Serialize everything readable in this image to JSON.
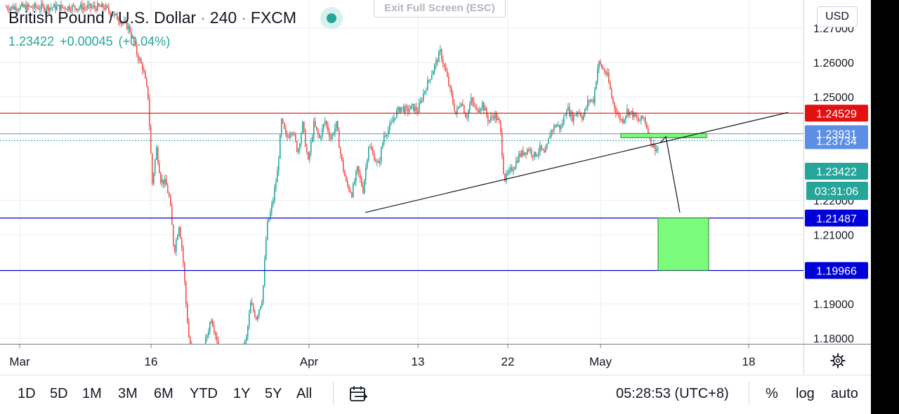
{
  "header": {
    "symbol": "British Pound / U.S. Dollar",
    "interval": "240",
    "exchange": "FXCM",
    "last_price": "1.23422",
    "change": "+0.00045",
    "change_pct": "(+0.04%)"
  },
  "exit_fullscreen_label": "Exit Full Screen (ESC)",
  "currency_button": "USD",
  "colors": {
    "up": "#26a69a",
    "down": "#ef5350",
    "resistance": "#e41010",
    "support": "#0000d8",
    "zone": "#7cfc7c",
    "badge_blue": "#5b8fe6",
    "badge_teal": "#26a69a"
  },
  "chart_data": {
    "type": "candlestick",
    "y_range": [
      1.177,
      1.275
    ],
    "y_ticks": [
      "1.27000",
      "1.26000",
      "1.25000",
      "1.22000",
      "1.21000",
      "1.19000",
      "1.18000"
    ],
    "x_ticks": [
      "Mar",
      "16",
      "Apr",
      "13",
      "22",
      "May",
      "18"
    ],
    "price_series": [
      [
        8,
        1.276
      ],
      [
        40,
        1.276
      ],
      [
        90,
        1.276
      ],
      [
        150,
        1.276
      ],
      [
        185,
        1.27
      ],
      [
        197,
        1.262
      ],
      [
        205,
        1.258
      ],
      [
        212,
        1.25
      ],
      [
        218,
        1.225
      ],
      [
        224,
        1.235
      ],
      [
        230,
        1.226
      ],
      [
        237,
        1.225
      ],
      [
        243,
        1.22
      ],
      [
        249,
        1.205
      ],
      [
        256,
        1.213
      ],
      [
        261,
        1.205
      ],
      [
        266,
        1.19
      ],
      [
        271,
        1.178
      ],
      [
        290,
        1.176
      ],
      [
        302,
        1.186
      ],
      [
        315,
        1.176
      ],
      [
        345,
        1.176
      ],
      [
        352,
        1.18
      ],
      [
        358,
        1.19
      ],
      [
        366,
        1.186
      ],
      [
        375,
        1.192
      ],
      [
        381,
        1.212
      ],
      [
        389,
        1.219
      ],
      [
        396,
        1.228
      ],
      [
        402,
        1.243
      ],
      [
        409,
        1.238
      ],
      [
        417,
        1.241
      ],
      [
        425,
        1.234
      ],
      [
        432,
        1.242
      ],
      [
        440,
        1.231
      ],
      [
        448,
        1.242
      ],
      [
        456,
        1.238
      ],
      [
        464,
        1.243
      ],
      [
        472,
        1.238
      ],
      [
        480,
        1.242
      ],
      [
        487,
        1.232
      ],
      [
        494,
        1.225
      ],
      [
        502,
        1.222
      ],
      [
        510,
        1.229
      ],
      [
        518,
        1.223
      ],
      [
        526,
        1.236
      ],
      [
        533,
        1.233
      ],
      [
        540,
        1.23
      ],
      [
        548,
        1.239
      ],
      [
        556,
        1.241
      ],
      [
        564,
        1.245
      ],
      [
        572,
        1.247
      ],
      [
        580,
        1.246
      ],
      [
        588,
        1.247
      ],
      [
        596,
        1.246
      ],
      [
        604,
        1.251
      ],
      [
        612,
        1.255
      ],
      [
        620,
        1.259
      ],
      [
        628,
        1.263
      ],
      [
        636,
        1.257
      ],
      [
        643,
        1.251
      ],
      [
        650,
        1.245
      ],
      [
        658,
        1.249
      ],
      [
        665,
        1.244
      ],
      [
        672,
        1.249
      ],
      [
        680,
        1.246
      ],
      [
        688,
        1.248
      ],
      [
        697,
        1.243
      ],
      [
        705,
        1.245
      ],
      [
        713,
        1.242
      ],
      [
        719,
        1.226
      ],
      [
        726,
        1.228
      ],
      [
        733,
        1.23
      ],
      [
        740,
        1.233
      ],
      [
        747,
        1.234
      ],
      [
        754,
        1.235
      ],
      [
        762,
        1.233
      ],
      [
        770,
        1.235
      ],
      [
        777,
        1.233
      ],
      [
        785,
        1.24
      ],
      [
        793,
        1.242
      ],
      [
        800,
        1.241
      ],
      [
        808,
        1.247
      ],
      [
        816,
        1.244
      ],
      [
        824,
        1.246
      ],
      [
        831,
        1.244
      ],
      [
        839,
        1.249
      ],
      [
        846,
        1.249
      ],
      [
        853,
        1.26
      ],
      [
        860,
        1.258
      ],
      [
        866,
        1.256
      ],
      [
        873,
        1.249
      ],
      [
        880,
        1.245
      ],
      [
        887,
        1.243
      ],
      [
        894,
        1.246
      ],
      [
        902,
        1.245
      ],
      [
        910,
        1.243
      ],
      [
        918,
        1.244
      ],
      [
        924,
        1.24
      ],
      [
        930,
        1.236
      ],
      [
        936,
        1.235
      ]
    ],
    "trendline": {
      "from": [
        520,
        1.2165
      ],
      "to": [
        1122,
        1.2455
      ]
    },
    "projection_path": [
      [
        940,
        1.2367
      ],
      [
        948,
        1.2385
      ],
      [
        968,
        1.2165
      ]
    ],
    "levels": [
      {
        "price": 1.24529,
        "label": "1.24529",
        "role": "resistance",
        "dashed": false
      },
      {
        "price": 1.23931,
        "label": "1.23931",
        "role": "level",
        "dashed": false
      },
      {
        "price": 1.23734,
        "label": "1.23734",
        "role": "level",
        "dashed": true
      },
      {
        "price": 1.21487,
        "label": "1.21487",
        "role": "support",
        "dashed": false
      },
      {
        "price": 1.19966,
        "label": "1.19966",
        "role": "support",
        "dashed": false
      }
    ],
    "zones": [
      {
        "x_from": 884,
        "x_to": 1006,
        "p_top": 1.2394,
        "p_bottom": 1.2384
      },
      {
        "x_from": 937,
        "x_to": 1009,
        "p_top": 1.2149,
        "p_bottom": 1.1997
      }
    ],
    "current_price_badge": {
      "price": 1.23422,
      "label": "1.23422",
      "countdown": "03:31:06"
    }
  },
  "toolbar": {
    "timeframes": [
      "1D",
      "5D",
      "1M",
      "3M",
      "6M",
      "YTD",
      "1Y",
      "5Y",
      "All"
    ],
    "clock": "05:28:53 (UTC+8)",
    "percent": "%",
    "log": "log",
    "auto": "auto"
  }
}
